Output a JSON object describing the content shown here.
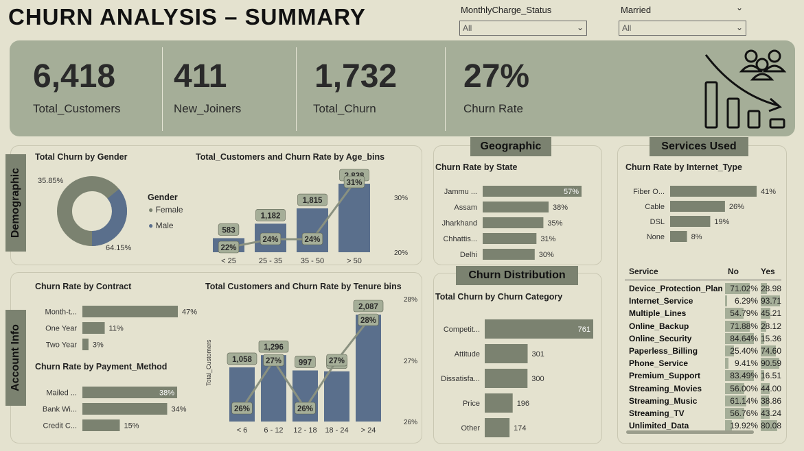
{
  "title": "CHURN ANALYSIS – SUMMARY",
  "slicers": {
    "monthly": {
      "label": "MonthlyCharge_Status",
      "value": "All"
    },
    "married": {
      "label": "Married",
      "value": "All"
    }
  },
  "kpis": [
    {
      "value": "6,418",
      "label": "Total_Customers"
    },
    {
      "value": "411",
      "label": "New_Joiners"
    },
    {
      "value": "1,732",
      "label": "Total_Churn"
    },
    {
      "value": "27%",
      "label": "Churn Rate"
    }
  ],
  "sections": {
    "demographic": "Demographic",
    "account": "Account Info",
    "geographic": "Geographic",
    "churn_dist": "Churn Distribution",
    "services": "Services Used"
  },
  "colors": {
    "bar": "#7b8270",
    "blue": "#5a6f8c",
    "band": "#a5ae98",
    "line": "#8a9180"
  },
  "gender": {
    "title": "Total Churn by Gender",
    "legend_title": "Gender",
    "female_pct_label": "64.15%",
    "male_pct_label": "35.85%",
    "female_label": "Female",
    "male_label": "Male"
  },
  "chart_data": [
    {
      "type": "pie",
      "title": "Total Churn by Gender",
      "categories": [
        "Female",
        "Male"
      ],
      "values": [
        64.15,
        35.85
      ]
    },
    {
      "type": "bar",
      "title": "Total_Customers and Churn Rate by Age_bins",
      "categories": [
        "< 25",
        "25 - 35",
        "35 - 50",
        "> 50"
      ],
      "series": [
        {
          "name": "Total_Customers",
          "values": [
            583,
            1182,
            1815,
            2838
          ],
          "labels": [
            "583",
            "1,182",
            "1,815",
            "2,838"
          ]
        },
        {
          "name": "Churn Rate",
          "values": [
            22,
            24,
            24,
            31
          ],
          "labels": [
            "22%",
            "24%",
            "24%",
            "31%"
          ]
        }
      ],
      "y2_ticks": [
        "30%",
        "20%"
      ]
    },
    {
      "type": "bar",
      "title": "Churn Rate by State",
      "categories": [
        "Jammu ...",
        "Assam",
        "Jharkhand",
        "Chhattis...",
        "Delhi"
      ],
      "values": [
        57,
        38,
        35,
        31,
        30
      ],
      "labels": [
        "57%",
        "38%",
        "35%",
        "31%",
        "30%"
      ]
    },
    {
      "type": "bar",
      "title": "Churn Rate by Internet_Type",
      "categories": [
        "Fiber O...",
        "Cable",
        "DSL",
        "None"
      ],
      "values": [
        41,
        26,
        19,
        8
      ],
      "labels": [
        "41%",
        "26%",
        "19%",
        "8%"
      ]
    },
    {
      "type": "bar",
      "title": "Churn Rate by Contract",
      "categories": [
        "Month-t...",
        "One Year",
        "Two Year"
      ],
      "values": [
        47,
        11,
        3
      ],
      "labels": [
        "47%",
        "11%",
        "3%"
      ]
    },
    {
      "type": "bar",
      "title": "Churn Rate by Payment_Method",
      "categories": [
        "Mailed ...",
        "Bank Wi...",
        "Credit C..."
      ],
      "values": [
        38,
        34,
        15
      ],
      "labels": [
        "38%",
        "34%",
        "15%"
      ]
    },
    {
      "type": "bar",
      "title": "Total Customers and Churn Rate by Tenure bins",
      "ylabel": "Total_Customers",
      "categories": [
        "< 6",
        "6 - 12",
        "12 - 18",
        "18 - 24",
        "> 24"
      ],
      "series": [
        {
          "name": "Total_Customers",
          "values": [
            1058,
            1296,
            997,
            980,
            2087
          ],
          "labels": [
            "1,058",
            "1,296",
            "997",
            "980",
            "2,087"
          ]
        },
        {
          "name": "Churn Rate",
          "values": [
            26,
            27,
            26,
            27,
            28
          ],
          "labels": [
            "26%",
            "27%",
            "26%",
            "27%",
            "28%"
          ]
        }
      ],
      "y2_ticks": [
        "28%",
        "27%",
        "26%"
      ]
    },
    {
      "type": "bar",
      "title": "Total Churn by Churn Category",
      "categories": [
        "Competit...",
        "Attitude",
        "Dissatisfa...",
        "Price",
        "Other"
      ],
      "values": [
        761,
        301,
        300,
        196,
        174
      ],
      "labels": [
        "761",
        "301",
        "300",
        "196",
        "174"
      ]
    },
    {
      "type": "table",
      "title": "Services Used",
      "columns": [
        "Service",
        "No",
        "Yes"
      ],
      "rows": [
        [
          "Device_Protection_Plan",
          "71.02%",
          "28.98"
        ],
        [
          "Internet_Service",
          "6.29%",
          "93.71"
        ],
        [
          "Multiple_Lines",
          "54.79%",
          "45.21"
        ],
        [
          "Online_Backup",
          "71.88%",
          "28.12"
        ],
        [
          "Online_Security",
          "84.64%",
          "15.36"
        ],
        [
          "Paperless_Billing",
          "25.40%",
          "74.60"
        ],
        [
          "Phone_Service",
          "9.41%",
          "90.59"
        ],
        [
          "Premium_Support",
          "83.49%",
          "16.51"
        ],
        [
          "Streaming_Movies",
          "56.00%",
          "44.00"
        ],
        [
          "Streaming_Music",
          "61.14%",
          "38.86"
        ],
        [
          "Streaming_TV",
          "56.76%",
          "43.24"
        ],
        [
          "Unlimited_Data",
          "19.92%",
          "80.08"
        ]
      ]
    }
  ]
}
